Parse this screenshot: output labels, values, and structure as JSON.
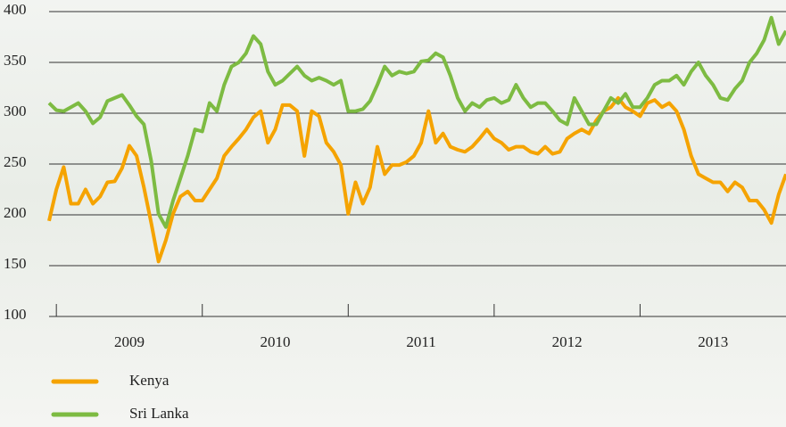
{
  "chart_data": {
    "type": "line",
    "x": [
      2008.95,
      2009.0,
      2009.05,
      2009.1,
      2009.15,
      2009.2,
      2009.25,
      2009.3,
      2009.35,
      2009.4,
      2009.45,
      2009.5,
      2009.55,
      2009.6,
      2009.65,
      2009.7,
      2009.75,
      2009.8,
      2009.85,
      2009.9,
      2009.95,
      2010.0,
      2010.05,
      2010.1,
      2010.15,
      2010.2,
      2010.25,
      2010.3,
      2010.35,
      2010.4,
      2010.45,
      2010.5,
      2010.55,
      2010.6,
      2010.65,
      2010.7,
      2010.75,
      2010.8,
      2010.85,
      2010.9,
      2010.95,
      2011.0,
      2011.05,
      2011.1,
      2011.15,
      2011.2,
      2011.25,
      2011.3,
      2011.35,
      2011.4,
      2011.45,
      2011.5,
      2011.55,
      2011.6,
      2011.65,
      2011.7,
      2011.75,
      2011.8,
      2011.85,
      2011.9,
      2011.95,
      2012.0,
      2012.05,
      2012.1,
      2012.15,
      2012.2,
      2012.25,
      2012.3,
      2012.35,
      2012.4,
      2012.45,
      2012.5,
      2012.55,
      2012.6,
      2012.65,
      2012.7,
      2012.75,
      2012.8,
      2012.85,
      2012.9,
      2012.95,
      2013.0,
      2013.05,
      2013.1,
      2013.15,
      2013.2,
      2013.25,
      2013.3,
      2013.35,
      2013.4,
      2013.45,
      2013.5,
      2013.55,
      2013.6,
      2013.65,
      2013.7,
      2013.75,
      2013.8,
      2013.85,
      2013.9,
      2013.95,
      2014.0
    ],
    "series": [
      {
        "name": "Kenya",
        "color": "#f5a300",
        "values": [
          194,
          225,
          247,
          211,
          211,
          225,
          211,
          218,
          232,
          233,
          246,
          268,
          258,
          227,
          192,
          154,
          175,
          201,
          218,
          223,
          214,
          214,
          225,
          236,
          258,
          267,
          275,
          284,
          296,
          302,
          271,
          284,
          308,
          308,
          302,
          258,
          302,
          297,
          271,
          262,
          249,
          201,
          232,
          211,
          227,
          267,
          240,
          249,
          249,
          252,
          258,
          271,
          302,
          271,
          280,
          267,
          264,
          262,
          267,
          275,
          284,
          275,
          271,
          264,
          267,
          267,
          262,
          260,
          267,
          260,
          262,
          275,
          280,
          284,
          280,
          293,
          302,
          306,
          315,
          306,
          302,
          297,
          310,
          313,
          306,
          310,
          302,
          284,
          258,
          240,
          236,
          232,
          232,
          223,
          232,
          227,
          214,
          214,
          205,
          192,
          220,
          240
        ]
      },
      {
        "name": "Sri Lanka",
        "color": "#7dbb42",
        "values": [
          310,
          303,
          302,
          306,
          310,
          302,
          290,
          296,
          312,
          315,
          318,
          308,
          297,
          289,
          253,
          201,
          188,
          214,
          236,
          258,
          284,
          282,
          310,
          302,
          328,
          346,
          350,
          359,
          376,
          368,
          341,
          328,
          332,
          339,
          346,
          337,
          332,
          335,
          332,
          328,
          332,
          302,
          302,
          304,
          312,
          328,
          346,
          337,
          341,
          339,
          341,
          351,
          352,
          359,
          355,
          337,
          315,
          302,
          310,
          306,
          313,
          315,
          310,
          313,
          328,
          315,
          306,
          310,
          310,
          302,
          293,
          289,
          315,
          302,
          289,
          289,
          302,
          315,
          310,
          319,
          306,
          306,
          315,
          328,
          332,
          332,
          337,
          328,
          341,
          350,
          337,
          328,
          315,
          313,
          324,
          332,
          350,
          359,
          372,
          394,
          368,
          381
        ]
      }
    ],
    "xlim": [
      2008.95,
      2014.0
    ],
    "xticks": [
      {
        "value": 2009.5,
        "label": "2009"
      },
      {
        "value": 2010.5,
        "label": "2010"
      },
      {
        "value": 2011.5,
        "label": "2011"
      },
      {
        "value": 2012.5,
        "label": "2012"
      },
      {
        "value": 2013.5,
        "label": "2013"
      }
    ],
    "ylim": [
      100,
      400
    ],
    "yticks": [
      100,
      150,
      200,
      250,
      300,
      350,
      400
    ],
    "grid": true,
    "legend": "bottom-left"
  }
}
